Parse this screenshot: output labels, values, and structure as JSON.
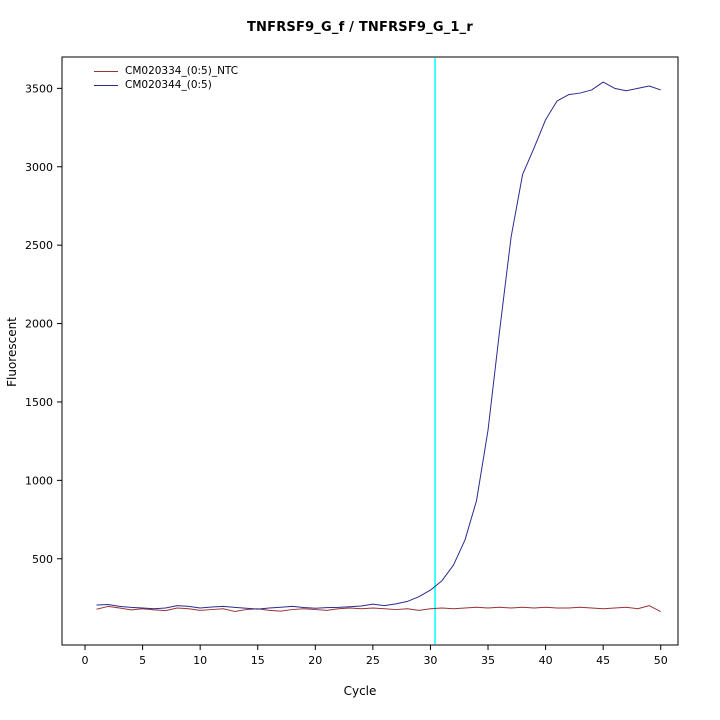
{
  "page": {
    "title": "TNFRSF9_G_f / TNFRSF9_G_1_r"
  },
  "chart_data": {
    "type": "line",
    "title": "TNFRSF9_G_f / TNFRSF9_G_1_r",
    "xlabel": "Cycle",
    "ylabel": "Fluorescent",
    "xlim": [
      -2,
      51.5
    ],
    "ylim": [
      -50,
      3700
    ],
    "xticks": [
      0,
      5,
      10,
      15,
      20,
      25,
      30,
      35,
      40,
      45,
      50
    ],
    "yticks": [
      500,
      1000,
      1500,
      2000,
      2500,
      3000,
      3500
    ],
    "grid": false,
    "legend_position": "top-left",
    "threshold_line": {
      "x": 30.4,
      "color": "#00ffff"
    },
    "x": [
      1,
      2,
      3,
      4,
      5,
      6,
      7,
      8,
      9,
      10,
      11,
      12,
      13,
      14,
      15,
      16,
      17,
      18,
      19,
      20,
      21,
      22,
      23,
      24,
      25,
      26,
      27,
      28,
      29,
      30,
      31,
      32,
      33,
      34,
      35,
      36,
      37,
      38,
      39,
      40,
      41,
      42,
      43,
      44,
      45,
      46,
      47,
      48,
      49,
      50
    ],
    "series": [
      {
        "name": "CM020334_(0:5)_NTC",
        "color": "#993333",
        "values": [
          178,
          196,
          186,
          174,
          181,
          174,
          169,
          186,
          181,
          171,
          176,
          181,
          164,
          176,
          181,
          171,
          166,
          176,
          181,
          176,
          171,
          181,
          186,
          181,
          186,
          181,
          176,
          181,
          171,
          181,
          186,
          181,
          186,
          191,
          186,
          191,
          186,
          191,
          186,
          191,
          186,
          186,
          191,
          186,
          181,
          186,
          191,
          181,
          201,
          163
        ]
      },
      {
        "name": "CM020344_(0:5)",
        "color": "#2b2b8f",
        "values": [
          205,
          208,
          196,
          190,
          186,
          181,
          186,
          201,
          196,
          186,
          192,
          196,
          190,
          184,
          179,
          186,
          191,
          196,
          189,
          184,
          188,
          190,
          194,
          199,
          211,
          201,
          212,
          228,
          258,
          300,
          360,
          460,
          620,
          870,
          1320,
          1950,
          2550,
          2950,
          3120,
          3300,
          3420,
          3460,
          3470,
          3490,
          3540,
          3500,
          3485,
          3500,
          3515,
          3490
        ]
      }
    ]
  }
}
